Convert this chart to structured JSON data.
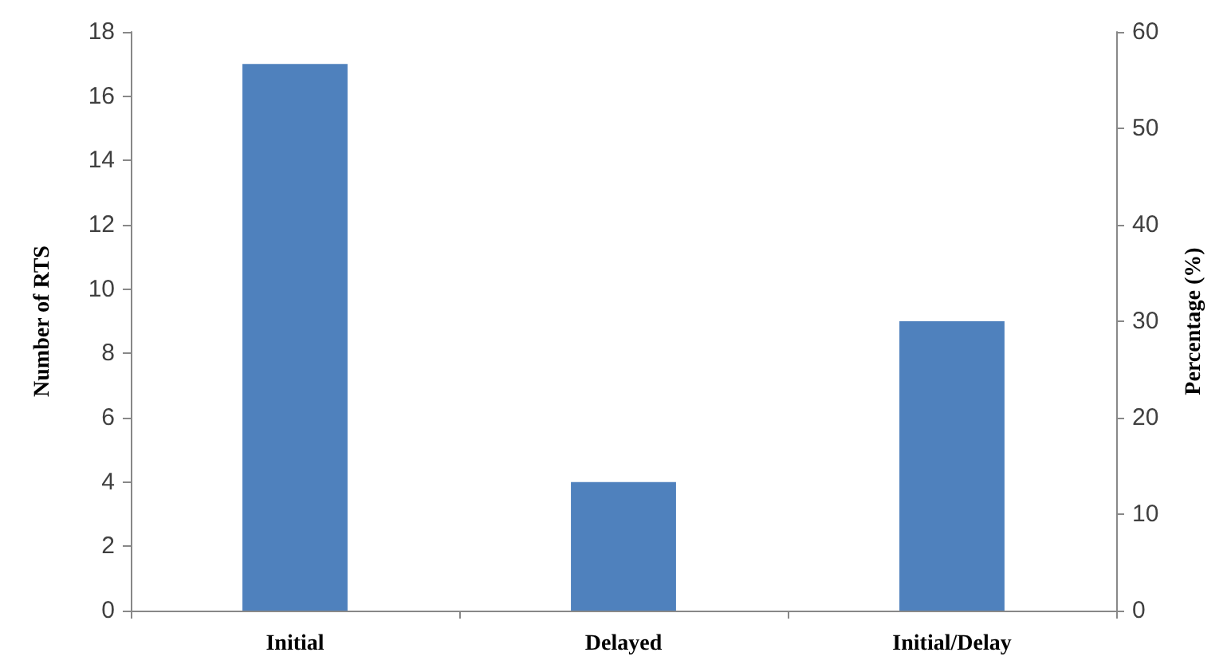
{
  "chart_data": {
    "type": "bar",
    "categories": [
      "Initial",
      "Delayed",
      "Initial/Delay"
    ],
    "values": [
      17,
      4,
      9
    ],
    "color": "#4f81bd",
    "ylabel": "Number of RTS",
    "y2label": "Percentage (%)",
    "ylim": [
      0,
      18
    ],
    "yticks": [
      0,
      2,
      4,
      6,
      8,
      10,
      12,
      14,
      16,
      18
    ],
    "y2lim": [
      0,
      60
    ],
    "y2ticks": [
      0,
      10,
      20,
      30,
      40,
      50,
      60
    ],
    "grid": false
  }
}
